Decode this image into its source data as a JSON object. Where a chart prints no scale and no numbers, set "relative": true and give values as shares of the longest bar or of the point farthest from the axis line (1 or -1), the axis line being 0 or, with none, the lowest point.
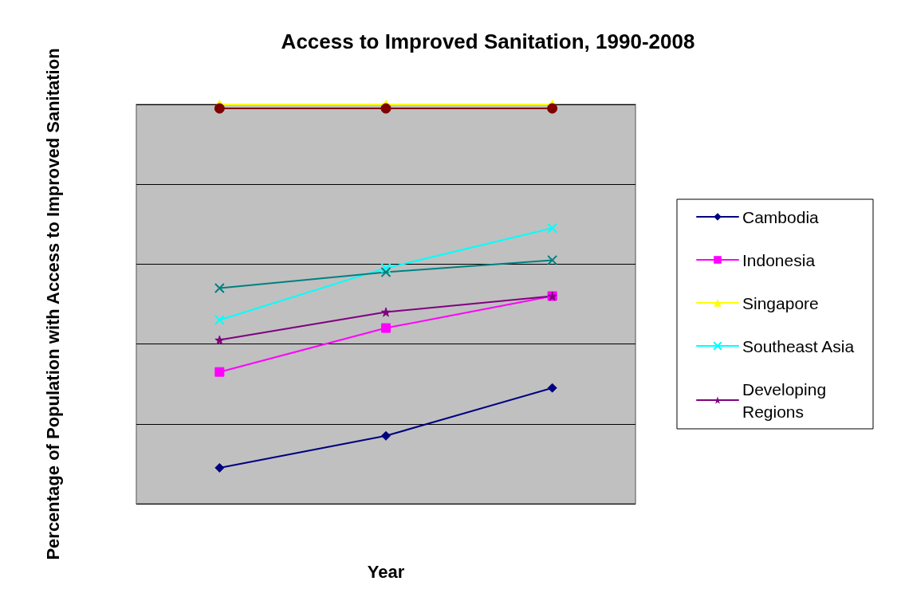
{
  "chart_data": {
    "type": "line",
    "title": "Access to Improved Sanitation, 1990-2008",
    "xlabel": "Year",
    "ylabel": "Percentage of Population with Access to Improved Sanitation",
    "categories": [
      null,
      null,
      null
    ],
    "relative": true,
    "grid": "y",
    "legend": "right",
    "series": [
      {
        "name": "Cambodia",
        "color": "#000080",
        "marker": "diamond",
        "values": [
          0.09,
          0.17,
          0.29
        ]
      },
      {
        "name": "Indonesia",
        "color": "#ff00ff",
        "marker": "square",
        "values": [
          0.33,
          0.44,
          0.52
        ]
      },
      {
        "name": "Singapore",
        "color": "#ffff00",
        "marker": "triangle",
        "values": [
          1,
          1,
          1
        ]
      },
      {
        "name": "Southeast Asia",
        "color": "#00ffff",
        "marker": "cross",
        "values": [
          0.46,
          0.59,
          0.69
        ]
      },
      {
        "name": "Developing Regions",
        "color": "#800080",
        "marker": "star",
        "values": [
          0.41,
          0.48,
          0.52
        ]
      },
      {
        "color": "#008080",
        "marker": "cross",
        "values": [
          0.54,
          0.58,
          0.61
        ]
      },
      {
        "color": "#800000",
        "marker": "circle",
        "values": [
          0.99,
          0.99,
          0.99
        ]
      }
    ]
  }
}
